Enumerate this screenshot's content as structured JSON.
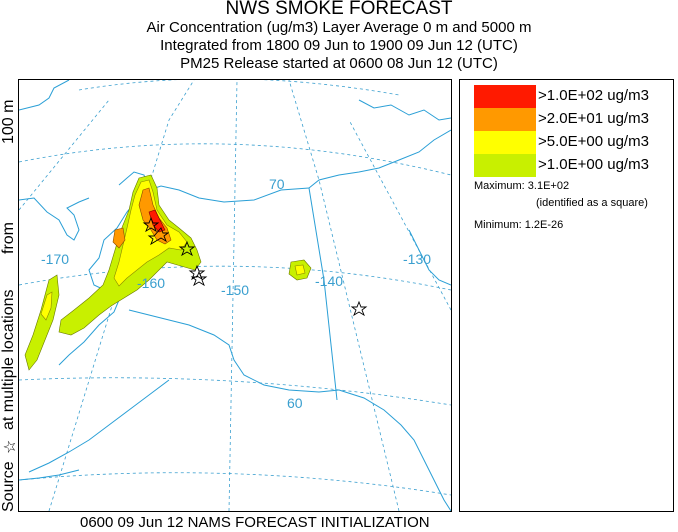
{
  "header": {
    "line1": "NWS SMOKE FORECAST",
    "line2": "Air Concentration (ug/m3) Layer Average    0 m and  5000 m",
    "line3": "Integrated from 1800 09 Jun to 1900 09 Jun 12 (UTC)",
    "line4": "PM25 Release started at 0600 08 Jun 12 (UTC)"
  },
  "side_label": {
    "source": "Source",
    "star": "☆",
    "locations": "at multiple locations",
    "from": "from",
    "height": "100 m"
  },
  "footer": "0600 09 Jun 12 NAMS FORECAST INITIALIZATION",
  "map": {
    "grid_labels": {
      "lon_170": "-170",
      "lon_160": "-160",
      "lon_150": "-150",
      "lon_140": "-140",
      "lon_130": "-130",
      "lat_70": "70",
      "lat_60": "60"
    },
    "colors": {
      "gt100": "#ff1a00",
      "gt20": "#ff9900",
      "gt5": "#ffff00",
      "gt1": "#c8f000",
      "grid": "#3a9fcf",
      "coast": "#2a9fd6"
    }
  },
  "legend": {
    "items": [
      {
        "label": ">1.0E+02 ug/m3",
        "color": "#ff1a00"
      },
      {
        "label": ">2.0E+01 ug/m3",
        "color": "#ff9900"
      },
      {
        "label": ">5.0E+00 ug/m3",
        "color": "#ffff00"
      },
      {
        "label": ">1.0E+00 ug/m3",
        "color": "#c8f000"
      }
    ],
    "maximum": "Maximum: 3.1E+02",
    "maximum_note": "(identified as a square)",
    "minimum": "Minimum: 1.2E-26"
  }
}
